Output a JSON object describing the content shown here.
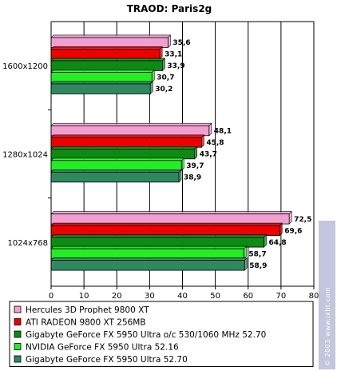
{
  "chart_data": {
    "type": "bar",
    "orientation": "horizontal",
    "title": "TRAOD: Paris2g",
    "categories": [
      "1600x1200",
      "1280x1024",
      "1024x768"
    ],
    "series": [
      {
        "name": "Hercules 3D Prophet 9800 XT",
        "color": "#f0a0d0",
        "values": [
          35.6,
          48.1,
          72.5
        ],
        "labels": [
          "35,6",
          "48,1",
          "72,5"
        ]
      },
      {
        "name": "ATI RADEON 9800 XT 256MB",
        "color": "#ee0000",
        "values": [
          33.1,
          45.8,
          69.6
        ],
        "labels": [
          "33,1",
          "45,8",
          "69,6"
        ]
      },
      {
        "name": "Gigabyte GeForce FX 5950 Ultra o/c 530/1060 MHz 52.70",
        "color": "#0c8a14",
        "values": [
          33.9,
          43.7,
          64.8
        ],
        "labels": [
          "33,9",
          "43,7",
          "64,8"
        ]
      },
      {
        "name": "NVIDIA GeForce FX 5950 Ultra 52.16",
        "color": "#22ee22",
        "values": [
          30.7,
          39.7,
          58.7
        ],
        "labels": [
          "30,7",
          "39,7",
          "58,7"
        ]
      },
      {
        "name": "Gigabyte GeForce FX 5950 Ultra 52.70",
        "color": "#2e8a5e",
        "values": [
          30.2,
          38.9,
          58.9
        ],
        "labels": [
          "30,2",
          "38,9",
          "58,9"
        ]
      }
    ],
    "xlim": [
      0,
      80
    ],
    "xticks": [
      0,
      10,
      20,
      30,
      40,
      50,
      60,
      70,
      80
    ],
    "grid": true,
    "legend_position": "bottom"
  },
  "watermark": "© 2003 www.ixbt.com"
}
